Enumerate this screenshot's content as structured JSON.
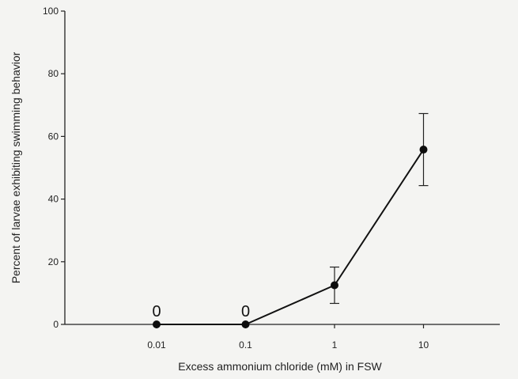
{
  "chart_data": {
    "type": "line",
    "xlabel": "Excess ammonium chloride (mM) in FSW",
    "ylabel": "Percent of larvae exhibiting swimming behavior",
    "x_scale": "log",
    "categories": [
      "0.01",
      "0.1",
      "1",
      "10"
    ],
    "x": [
      0.01,
      0.1,
      1,
      10
    ],
    "ylim": [
      0,
      100
    ],
    "yticks": [
      0,
      20,
      40,
      60,
      80,
      100
    ],
    "series": [
      {
        "values": [
          0,
          0,
          12.5,
          55.8
        ],
        "error": [
          0,
          0,
          5.8,
          11.5
        ],
        "color": "#111111"
      }
    ],
    "annotations": [
      {
        "x": 0.01,
        "text": "0"
      },
      {
        "x": 0.1,
        "text": "0"
      }
    ],
    "grid": false,
    "legend": "none"
  }
}
